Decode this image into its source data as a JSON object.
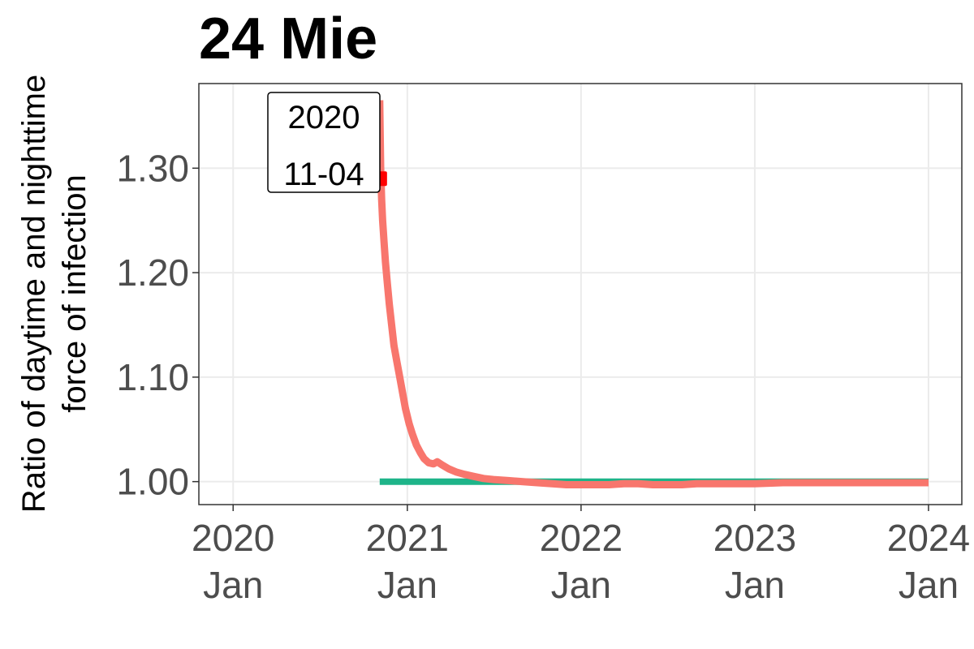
{
  "chart_data": {
    "type": "line",
    "title": "24 Mie",
    "ylabel_lines": [
      "Ratio of daytime and nighttime",
      "force of infection"
    ],
    "xlabel": "",
    "x_ticks": [
      {
        "date": "2020-01-01",
        "year": "2020",
        "month": "Jan"
      },
      {
        "date": "2021-01-01",
        "year": "2021",
        "month": "Jan"
      },
      {
        "date": "2022-01-01",
        "year": "2022",
        "month": "Jan"
      },
      {
        "date": "2023-01-01",
        "year": "2023",
        "month": "Jan"
      },
      {
        "date": "2024-01-01",
        "year": "2024",
        "month": "Jan"
      }
    ],
    "y_ticks": [
      1.0,
      1.1,
      1.2,
      1.3
    ],
    "y_tick_labels": [
      "1.00",
      "1.10",
      "1.20",
      "1.30"
    ],
    "xlim": [
      "2019-10-21",
      "2024-03-11"
    ],
    "ylim": [
      0.978,
      1.381
    ],
    "grid": true,
    "series": [
      {
        "color": "#F8766D",
        "points": [
          [
            "2020-11-04",
            1.365
          ],
          [
            "2020-11-06",
            1.3
          ],
          [
            "2020-11-08",
            1.27
          ],
          [
            "2020-11-10",
            1.25
          ],
          [
            "2020-11-13",
            1.23
          ],
          [
            "2020-11-16",
            1.21
          ],
          [
            "2020-11-20",
            1.19
          ],
          [
            "2020-11-24",
            1.17
          ],
          [
            "2020-11-29",
            1.15
          ],
          [
            "2020-12-04",
            1.13
          ],
          [
            "2020-12-10",
            1.115
          ],
          [
            "2020-12-16",
            1.1
          ],
          [
            "2020-12-22",
            1.085
          ],
          [
            "2020-12-28",
            1.07
          ],
          [
            "2021-01-05",
            1.055
          ],
          [
            "2021-01-12",
            1.045
          ],
          [
            "2021-01-20",
            1.035
          ],
          [
            "2021-01-28",
            1.028
          ],
          [
            "2021-02-05",
            1.022
          ],
          [
            "2021-02-15",
            1.018
          ],
          [
            "2021-02-25",
            1.017
          ],
          [
            "2021-03-05",
            1.019
          ],
          [
            "2021-03-15",
            1.016
          ],
          [
            "2021-03-30",
            1.012
          ],
          [
            "2021-04-15",
            1.009
          ],
          [
            "2021-05-01",
            1.007
          ],
          [
            "2021-05-20",
            1.005
          ],
          [
            "2021-06-10",
            1.003
          ],
          [
            "2021-07-01",
            1.002
          ],
          [
            "2021-08-01",
            1.001
          ],
          [
            "2021-09-01",
            1.0
          ],
          [
            "2021-10-01",
            0.999
          ],
          [
            "2021-11-01",
            0.998
          ],
          [
            "2021-12-01",
            0.997
          ],
          [
            "2022-01-01",
            0.997
          ],
          [
            "2022-02-01",
            0.997
          ],
          [
            "2022-03-01",
            0.997
          ],
          [
            "2022-04-01",
            0.998
          ],
          [
            "2022-05-01",
            0.998
          ],
          [
            "2022-06-01",
            0.997
          ],
          [
            "2022-07-01",
            0.997
          ],
          [
            "2022-08-01",
            0.997
          ],
          [
            "2022-09-01",
            0.998
          ],
          [
            "2022-10-01",
            0.998
          ],
          [
            "2022-11-01",
            0.998
          ],
          [
            "2022-12-01",
            0.998
          ],
          [
            "2023-01-01",
            0.998
          ],
          [
            "2023-03-01",
            0.999
          ],
          [
            "2023-05-01",
            0.999
          ],
          [
            "2023-07-01",
            0.999
          ],
          [
            "2023-09-01",
            0.999
          ],
          [
            "2023-11-01",
            0.999
          ],
          [
            "2024-01-01",
            0.999
          ]
        ]
      },
      {
        "color": "#1EB489",
        "points": [
          [
            "2020-11-04",
            1.0
          ],
          [
            "2024-01-01",
            1.0
          ]
        ]
      }
    ],
    "marker": {
      "date": "2020-11-04",
      "y": 1.29,
      "color": "#FF0000"
    },
    "annotation": {
      "lines": [
        "2020",
        "11-04"
      ]
    }
  }
}
